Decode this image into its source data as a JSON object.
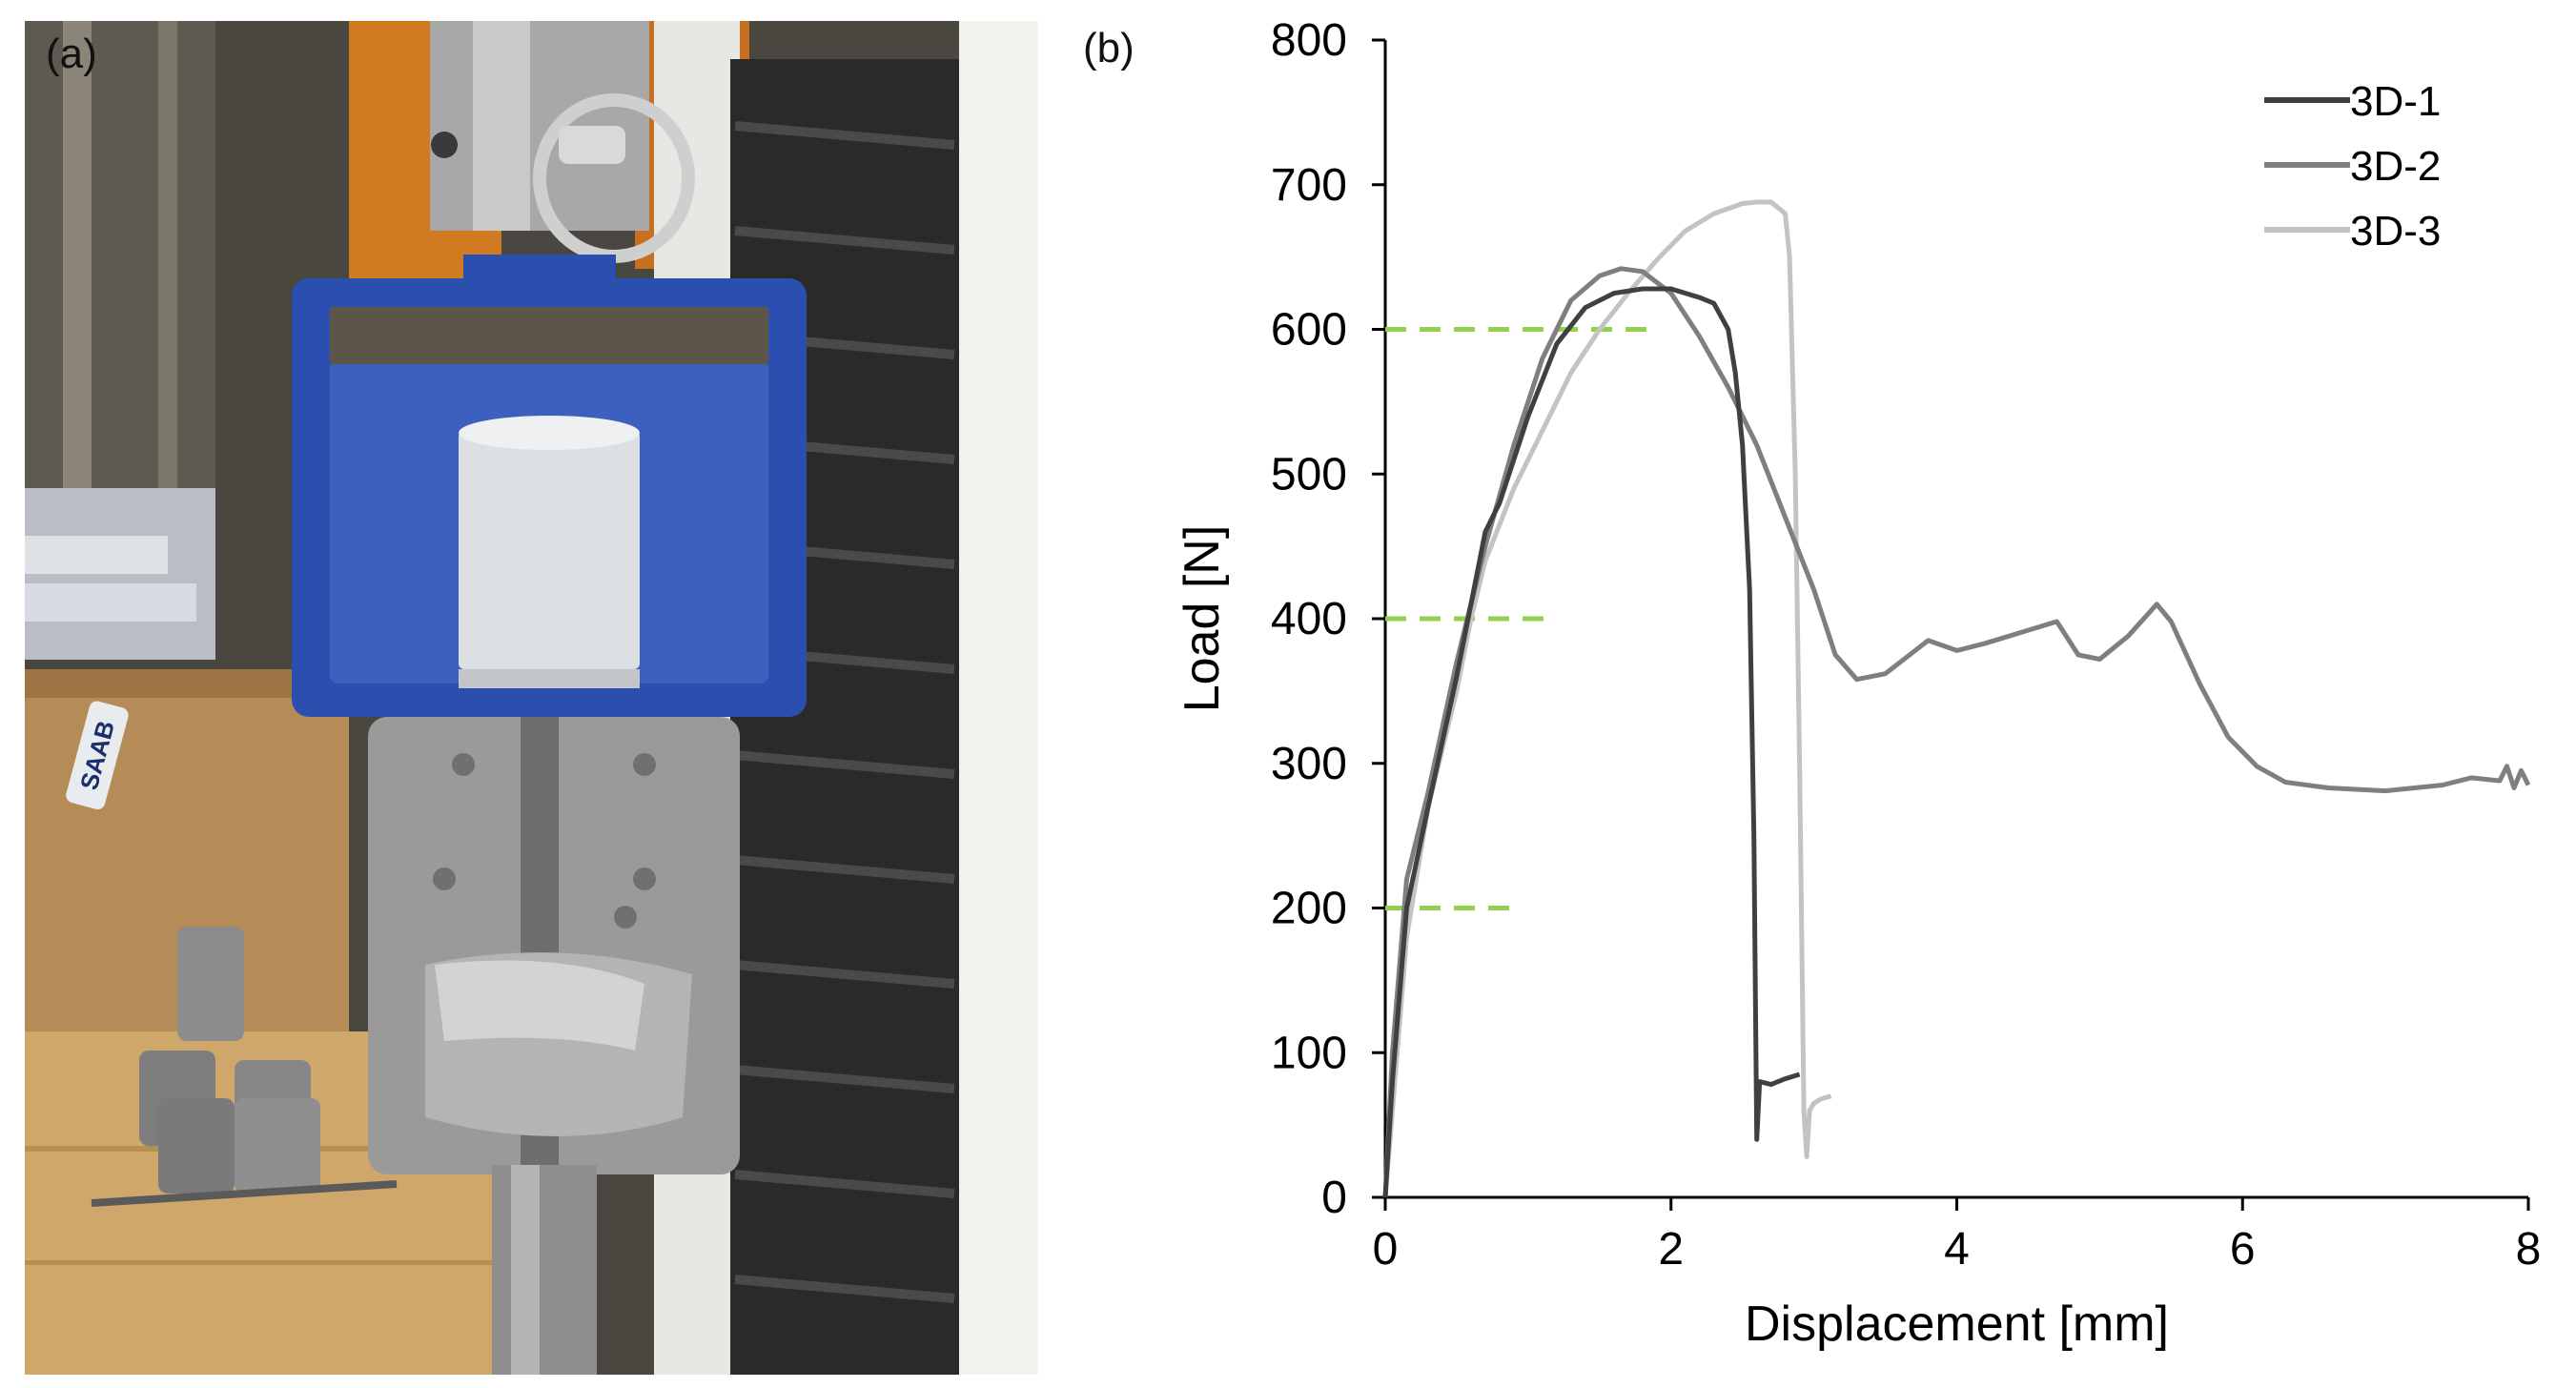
{
  "panels": {
    "a_label": "(a)",
    "b_label": "(b)"
  },
  "photo": {
    "stamp_text": "SAAB"
  },
  "chart_data": {
    "type": "line",
    "xlabel": "Displacement [mm]",
    "ylabel": "Load [N]",
    "xlim": [
      0,
      8
    ],
    "ylim": [
      0,
      800
    ],
    "xticks": [
      0,
      2,
      4,
      6,
      8
    ],
    "yticks": [
      0,
      100,
      200,
      300,
      400,
      500,
      600,
      700,
      800
    ],
    "grid": false,
    "legend": "top-right",
    "series": [
      {
        "name": "3D-1",
        "color": "#404040",
        "points": [
          [
            0,
            0
          ],
          [
            0.05,
            80
          ],
          [
            0.15,
            200
          ],
          [
            0.3,
            270
          ],
          [
            0.5,
            360
          ],
          [
            0.7,
            460
          ],
          [
            0.8,
            480
          ],
          [
            1.0,
            540
          ],
          [
            1.2,
            590
          ],
          [
            1.4,
            615
          ],
          [
            1.6,
            625
          ],
          [
            1.8,
            628
          ],
          [
            2.0,
            628
          ],
          [
            2.2,
            622
          ],
          [
            2.3,
            618
          ],
          [
            2.4,
            600
          ],
          [
            2.45,
            570
          ],
          [
            2.5,
            520
          ],
          [
            2.55,
            420
          ],
          [
            2.58,
            250
          ],
          [
            2.6,
            40
          ],
          [
            2.62,
            80
          ],
          [
            2.7,
            78
          ],
          [
            2.8,
            82
          ],
          [
            2.9,
            85
          ]
        ]
      },
      {
        "name": "3D-2",
        "color": "#7f7f7f",
        "points": [
          [
            0,
            0
          ],
          [
            0.05,
            100
          ],
          [
            0.15,
            220
          ],
          [
            0.3,
            280
          ],
          [
            0.5,
            370
          ],
          [
            0.7,
            450
          ],
          [
            0.9,
            520
          ],
          [
            1.1,
            580
          ],
          [
            1.3,
            620
          ],
          [
            1.5,
            637
          ],
          [
            1.65,
            642
          ],
          [
            1.8,
            640
          ],
          [
            2.0,
            625
          ],
          [
            2.2,
            595
          ],
          [
            2.4,
            560
          ],
          [
            2.6,
            520
          ],
          [
            2.8,
            470
          ],
          [
            3.0,
            420
          ],
          [
            3.15,
            375
          ],
          [
            3.3,
            358
          ],
          [
            3.5,
            362
          ],
          [
            3.8,
            385
          ],
          [
            4.0,
            378
          ],
          [
            4.2,
            383
          ],
          [
            4.5,
            392
          ],
          [
            4.7,
            398
          ],
          [
            4.85,
            375
          ],
          [
            5.0,
            372
          ],
          [
            5.2,
            388
          ],
          [
            5.4,
            410
          ],
          [
            5.5,
            398
          ],
          [
            5.7,
            355
          ],
          [
            5.9,
            318
          ],
          [
            6.1,
            298
          ],
          [
            6.3,
            287
          ],
          [
            6.6,
            283
          ],
          [
            7.0,
            281
          ],
          [
            7.4,
            285
          ],
          [
            7.6,
            290
          ],
          [
            7.8,
            288
          ],
          [
            7.85,
            298
          ],
          [
            7.9,
            283
          ],
          [
            7.95,
            295
          ],
          [
            8.0,
            285
          ]
        ]
      },
      {
        "name": "3D-3",
        "color": "#c3c3c3",
        "points": [
          [
            0,
            0
          ],
          [
            0.05,
            60
          ],
          [
            0.15,
            180
          ],
          [
            0.3,
            270
          ],
          [
            0.5,
            350
          ],
          [
            0.6,
            400
          ],
          [
            0.7,
            440
          ],
          [
            0.9,
            490
          ],
          [
            1.1,
            530
          ],
          [
            1.3,
            570
          ],
          [
            1.5,
            600
          ],
          [
            1.7,
            625
          ],
          [
            1.9,
            648
          ],
          [
            2.1,
            668
          ],
          [
            2.3,
            680
          ],
          [
            2.5,
            687
          ],
          [
            2.6,
            688
          ],
          [
            2.7,
            688
          ],
          [
            2.8,
            680
          ],
          [
            2.83,
            650
          ],
          [
            2.87,
            500
          ],
          [
            2.9,
            300
          ],
          [
            2.93,
            60
          ],
          [
            2.95,
            28
          ],
          [
            2.97,
            60
          ],
          [
            3.0,
            65
          ],
          [
            3.05,
            68
          ],
          [
            3.12,
            70
          ]
        ]
      }
    ],
    "reference_lines": [
      {
        "y": 600,
        "x_end": 1.9,
        "color": "#92d050"
      },
      {
        "y": 400,
        "x_end": 1.2,
        "color": "#92d050"
      },
      {
        "y": 200,
        "x_end": 0.9,
        "color": "#92d050"
      }
    ]
  }
}
